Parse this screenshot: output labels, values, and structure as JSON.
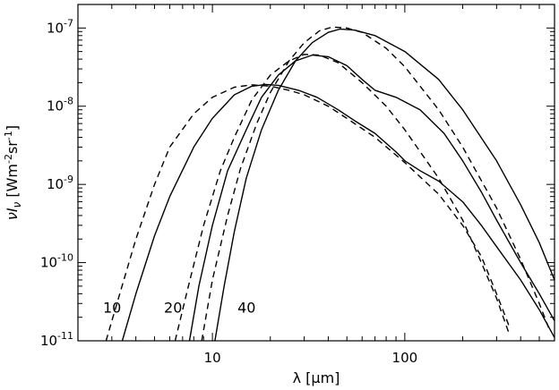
{
  "chart_data": {
    "type": "line",
    "title": "",
    "xlabel": "λ [μm]",
    "ylabel": "νI_ν [Wm⁻²sr⁻¹]",
    "xscale": "log",
    "yscale": "log",
    "xlim": [
      2,
      600
    ],
    "ylim": [
      1e-11,
      2e-07
    ],
    "grid": false,
    "x_ticks": [
      {
        "value": 10,
        "label": "10"
      },
      {
        "value": 100,
        "label": "100"
      }
    ],
    "y_ticks": [
      {
        "value": 1e-11,
        "base": "10",
        "exp": "-11"
      },
      {
        "value": 1e-10,
        "base": "10",
        "exp": "-10"
      },
      {
        "value": 1e-09,
        "base": "10",
        "exp": "-9"
      },
      {
        "value": 1e-08,
        "base": "10",
        "exp": "-8"
      },
      {
        "value": 1e-07,
        "base": "10",
        "exp": "-7"
      }
    ],
    "annotations": [
      {
        "text": "10",
        "x": 2.7,
        "y": 2.3e-11
      },
      {
        "text": "20",
        "x": 5.6,
        "y": 2.3e-11
      },
      {
        "text": "40",
        "x": 13.5,
        "y": 2.3e-11
      }
    ],
    "series": [
      {
        "style": "solid",
        "points": [
          [
            3.4,
            1e-11
          ],
          [
            4,
            4e-11
          ],
          [
            5,
            2.2e-10
          ],
          [
            6,
            7e-10
          ],
          [
            8,
            3e-09
          ],
          [
            10,
            7e-09
          ],
          [
            13,
            1.4e-08
          ],
          [
            16,
            1.8e-08
          ],
          [
            19,
            1.9e-08
          ],
          [
            22,
            1.85e-08
          ],
          [
            28,
            1.6e-08
          ],
          [
            35,
            1.3e-08
          ],
          [
            45,
            9e-09
          ],
          [
            55,
            6.5e-09
          ],
          [
            70,
            4.5e-09
          ],
          [
            90,
            2.6e-09
          ],
          [
            100,
            2e-09
          ],
          [
            120,
            1.5e-09
          ],
          [
            150,
            1.1e-09
          ],
          [
            200,
            6e-10
          ],
          [
            250,
            3e-10
          ],
          [
            300,
            1.6e-10
          ],
          [
            400,
            6e-11
          ],
          [
            500,
            2.5e-11
          ],
          [
            600,
            1.1e-11
          ]
        ]
      },
      {
        "style": "dashed",
        "points": [
          [
            2.8,
            1e-11
          ],
          [
            3.3,
            4e-11
          ],
          [
            4,
            2e-10
          ],
          [
            5,
            1e-09
          ],
          [
            6,
            3e-09
          ],
          [
            8,
            8e-09
          ],
          [
            10,
            1.3e-08
          ],
          [
            13,
            1.75e-08
          ],
          [
            16,
            1.88e-08
          ],
          [
            20,
            1.8e-08
          ],
          [
            25,
            1.6e-08
          ],
          [
            30,
            1.4e-08
          ],
          [
            40,
            1e-08
          ],
          [
            50,
            7e-09
          ],
          [
            70,
            4e-09
          ],
          [
            100,
            1.9e-09
          ],
          [
            150,
            7.5e-10
          ],
          [
            200,
            3e-10
          ],
          [
            250,
            1.2e-10
          ],
          [
            300,
            4e-11
          ],
          [
            350,
            1.5e-11
          ]
        ]
      },
      {
        "style": "solid",
        "points": [
          [
            7.6,
            1e-11
          ],
          [
            8.5,
            5e-11
          ],
          [
            10,
            3e-10
          ],
          [
            12,
            1.5e-09
          ],
          [
            15,
            5e-09
          ],
          [
            18,
            1.3e-08
          ],
          [
            22,
            2.5e-08
          ],
          [
            27,
            3.8e-08
          ],
          [
            33,
            4.5e-08
          ],
          [
            40,
            4.3e-08
          ],
          [
            50,
            3.3e-08
          ],
          [
            60,
            2.2e-08
          ],
          [
            70,
            1.6e-08
          ],
          [
            90,
            1.3e-08
          ],
          [
            120,
            9e-09
          ],
          [
            160,
            4.5e-09
          ],
          [
            200,
            2e-09
          ],
          [
            250,
            8e-10
          ],
          [
            300,
            3.5e-10
          ],
          [
            400,
            1e-10
          ],
          [
            500,
            4e-11
          ],
          [
            600,
            1.8e-11
          ]
        ]
      },
      {
        "style": "dashed",
        "points": [
          [
            6.4,
            1e-11
          ],
          [
            7.5,
            5e-11
          ],
          [
            9,
            3e-10
          ],
          [
            11,
            1.5e-09
          ],
          [
            13,
            4e-09
          ],
          [
            16,
            1.2e-08
          ],
          [
            20,
            2.5e-08
          ],
          [
            25,
            3.8e-08
          ],
          [
            30,
            4.6e-08
          ],
          [
            36,
            4.5e-08
          ],
          [
            45,
            3.6e-08
          ],
          [
            60,
            2e-08
          ],
          [
            80,
            1e-08
          ],
          [
            100,
            5e-09
          ],
          [
            150,
            1.2e-09
          ],
          [
            200,
            3.5e-10
          ],
          [
            250,
            1e-10
          ],
          [
            300,
            3.5e-11
          ],
          [
            350,
            1.2e-11
          ]
        ]
      },
      {
        "style": "solid",
        "points": [
          [
            10.3,
            1e-11
          ],
          [
            11.5,
            5e-11
          ],
          [
            13,
            2.5e-10
          ],
          [
            15,
            1.2e-09
          ],
          [
            18,
            5e-09
          ],
          [
            22,
            1.6e-08
          ],
          [
            27,
            3.8e-08
          ],
          [
            33,
            6.5e-08
          ],
          [
            40,
            8.8e-08
          ],
          [
            46,
            9.7e-08
          ],
          [
            55,
            9.4e-08
          ],
          [
            70,
            8e-08
          ],
          [
            100,
            5e-08
          ],
          [
            150,
            2.2e-08
          ],
          [
            200,
            9e-09
          ],
          [
            300,
            2e-09
          ],
          [
            400,
            5.5e-10
          ],
          [
            500,
            1.8e-10
          ],
          [
            600,
            6e-11
          ]
        ]
      },
      {
        "style": "dashed",
        "points": [
          [
            8.8,
            1e-11
          ],
          [
            10,
            6e-11
          ],
          [
            12,
            4e-10
          ],
          [
            14,
            1.6e-09
          ],
          [
            17,
            6e-09
          ],
          [
            20,
            1.5e-08
          ],
          [
            25,
            3.8e-08
          ],
          [
            30,
            6.5e-08
          ],
          [
            36,
            9.2e-08
          ],
          [
            42,
            1.03e-07
          ],
          [
            50,
            1e-07
          ],
          [
            60,
            8.8e-08
          ],
          [
            80,
            5.5e-08
          ],
          [
            100,
            3.2e-08
          ],
          [
            150,
            9e-09
          ],
          [
            200,
            3e-09
          ],
          [
            300,
            5e-10
          ],
          [
            400,
            1.1e-10
          ],
          [
            500,
            3e-11
          ],
          [
            570,
            1.3e-11
          ]
        ]
      }
    ]
  }
}
